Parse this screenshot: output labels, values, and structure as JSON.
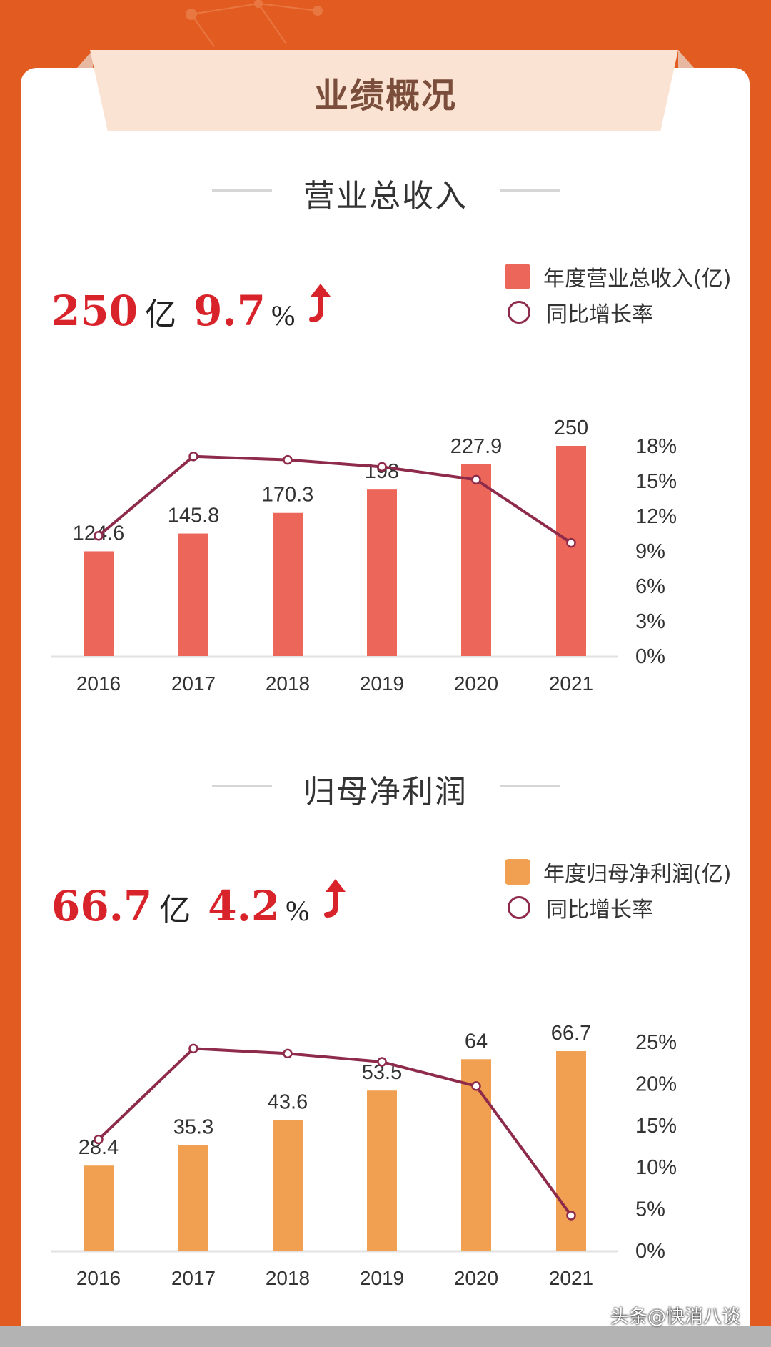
{
  "header": {
    "title": "业绩概况"
  },
  "colors": {
    "background": "#E25B20",
    "revenue_bar": "#EC6659",
    "profit_bar": "#F0A050",
    "growth_line": "#8E2A4A",
    "highlight": "#D8232A"
  },
  "sections": [
    {
      "title": "营业总收入",
      "headline": {
        "value": "250",
        "unit": "亿",
        "growth": "9.7",
        "growth_unit": "%",
        "trend_icon": "arrow-up-icon"
      },
      "legend": {
        "bar": "年度营业总收入(亿)",
        "line": "同比增长率"
      }
    },
    {
      "title": "归母净利润",
      "headline": {
        "value": "66.7",
        "unit": "亿",
        "growth": "4.2",
        "growth_unit": "%",
        "trend_icon": "arrow-up-icon"
      },
      "legend": {
        "bar": "年度归母净利润(亿)",
        "line": "同比增长率"
      }
    }
  ],
  "chart_data": [
    {
      "type": "bar",
      "title": "营业总收入",
      "categories": [
        "2016",
        "2017",
        "2018",
        "2019",
        "2020",
        "2021"
      ],
      "series": [
        {
          "name": "年度营业总收入(亿)",
          "type": "bar",
          "axis": "left",
          "values": [
            124.6,
            145.8,
            170.3,
            198,
            227.9,
            250
          ],
          "labels": [
            "124.6",
            "145.8",
            "170.3",
            "198",
            "227.9",
            "250"
          ]
        },
        {
          "name": "同比增长率",
          "type": "line",
          "axis": "right",
          "values": [
            10.3,
            17.1,
            16.8,
            16.2,
            15.1,
            9.7
          ]
        }
      ],
      "ylim_bar": [
        0,
        250
      ],
      "ylim_right": [
        0,
        18
      ],
      "right_ticks": [
        "0%",
        "3%",
        "6%",
        "9%",
        "12%",
        "15%",
        "18%"
      ],
      "right_tick_values": [
        0,
        3,
        6,
        9,
        12,
        15,
        18
      ],
      "legend_position": "top-right",
      "grid": false
    },
    {
      "type": "bar",
      "title": "归母净利润",
      "categories": [
        "2016",
        "2017",
        "2018",
        "2019",
        "2020",
        "2021"
      ],
      "series": [
        {
          "name": "年度归母净利润(亿)",
          "type": "bar",
          "axis": "left",
          "values": [
            28.4,
            35.3,
            43.6,
            53.5,
            64,
            66.7
          ],
          "labels": [
            "28.4",
            "35.3",
            "43.6",
            "53.5",
            "64",
            "66.7"
          ]
        },
        {
          "name": "同比增长率",
          "type": "line",
          "axis": "right",
          "values": [
            13.3,
            24.2,
            23.6,
            22.6,
            19.7,
            4.2
          ]
        }
      ],
      "ylim_bar": [
        0,
        66.7
      ],
      "ylim_right": [
        0,
        25
      ],
      "right_ticks": [
        "0%",
        "5%",
        "10%",
        "15%",
        "20%",
        "25%"
      ],
      "right_tick_values": [
        0,
        5,
        10,
        15,
        20,
        25
      ],
      "legend_position": "top-right",
      "grid": false
    }
  ],
  "watermark": "头条@快消八谈"
}
